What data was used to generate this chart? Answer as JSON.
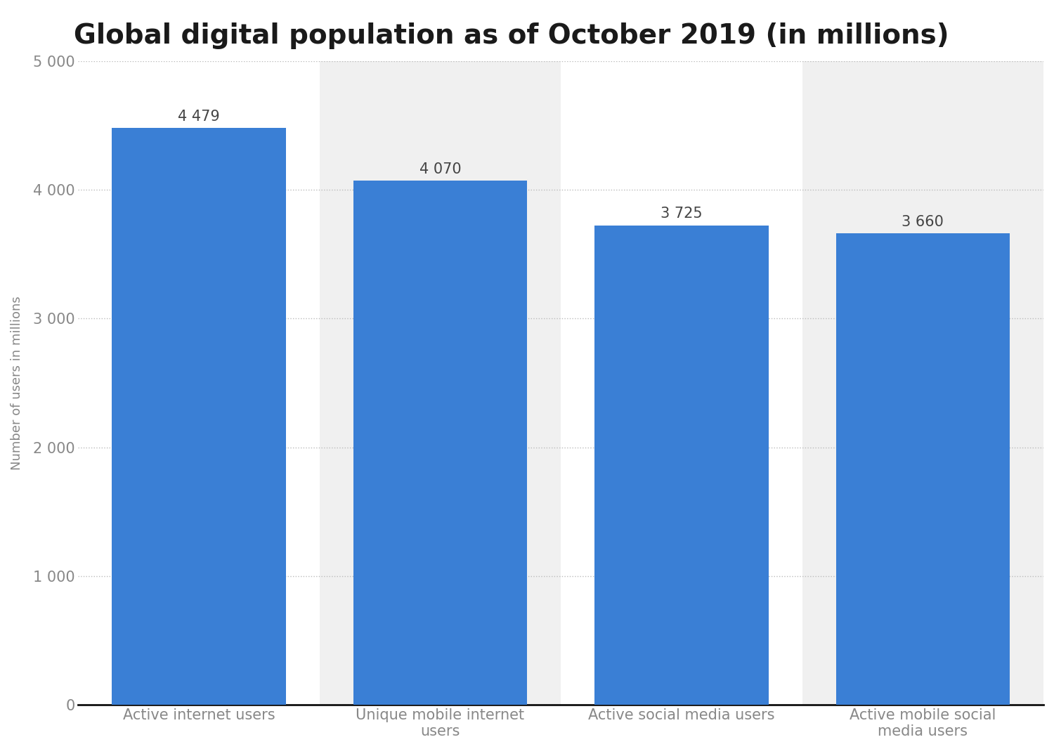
{
  "title": "Global digital population as of October 2019 (in millions)",
  "categories": [
    "Active internet users",
    "Unique mobile internet\nusers",
    "Active social media users",
    "Active mobile social\nmedia users"
  ],
  "values": [
    4479,
    4070,
    3725,
    3660
  ],
  "bar_labels": [
    "4 479",
    "4 070",
    "3 725",
    "3 660"
  ],
  "bar_color": "#3a7fd5",
  "ylabel": "Number of users in millions",
  "ylim": [
    0,
    5000
  ],
  "yticks": [
    0,
    1000,
    2000,
    3000,
    4000,
    5000
  ],
  "ytick_labels": [
    "0",
    "1 000",
    "2 000",
    "3 000",
    "4 000",
    "5 000"
  ],
  "background_color": "#ffffff",
  "gray_col_color": "#f0f0f0",
  "grid_color": "#bbbbbb",
  "title_fontsize": 28,
  "label_fontsize": 15,
  "tick_fontsize": 15,
  "bar_label_fontsize": 15,
  "ylabel_fontsize": 13,
  "gray_cols": [
    1,
    3
  ]
}
